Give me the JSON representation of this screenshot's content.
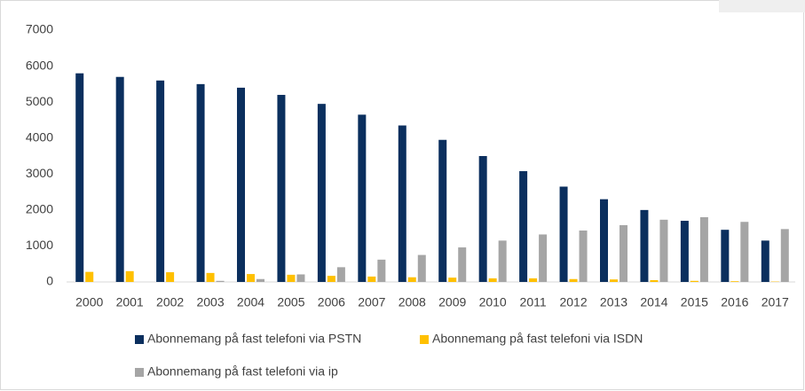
{
  "chart_data": {
    "type": "bar",
    "categories": [
      "2000",
      "2001",
      "2002",
      "2003",
      "2004",
      "2005",
      "2006",
      "2007",
      "2008",
      "2009",
      "2010",
      "2011",
      "2012",
      "2013",
      "2014",
      "2015",
      "2016",
      "2017"
    ],
    "series": [
      {
        "name": "Abonnemang på fast telefoni via PSTN",
        "color": "#0b2f5e",
        "values": [
          5800,
          5700,
          5600,
          5500,
          5400,
          5200,
          4950,
          4650,
          4350,
          3950,
          3500,
          3080,
          2650,
          2300,
          2000,
          1700,
          1450,
          1150
        ]
      },
      {
        "name": "Abonnemang på fast telefoni via ISDN",
        "color": "#ffc000",
        "values": [
          280,
          300,
          270,
          250,
          220,
          200,
          170,
          150,
          130,
          120,
          100,
          100,
          80,
          70,
          50,
          30,
          20,
          10
        ]
      },
      {
        "name": "Abonnemang på fast telefoni via ip",
        "color": "#a5a5a5",
        "values": [
          0,
          0,
          0,
          30,
          80,
          210,
          410,
          620,
          750,
          960,
          1150,
          1320,
          1430,
          1580,
          1730,
          1800,
          1670,
          1470
        ]
      }
    ],
    "ylim": [
      0,
      7000
    ],
    "yticks": [
      0,
      1000,
      2000,
      3000,
      4000,
      5000,
      6000,
      7000
    ],
    "grid": false
  }
}
